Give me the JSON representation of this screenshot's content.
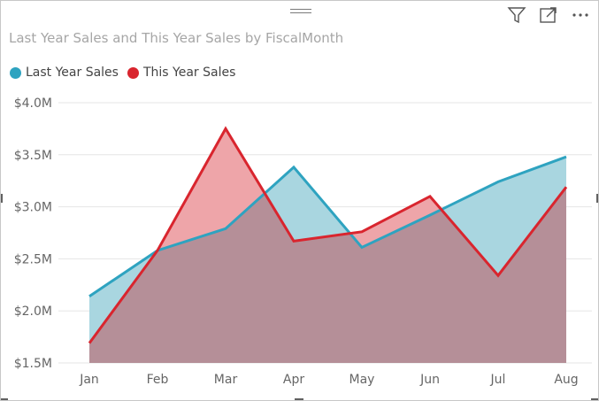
{
  "visual": {
    "title": "Last Year Sales and This Year Sales by FiscalMonth",
    "header_icons": [
      "filter-icon",
      "focus-mode-icon",
      "more-options-icon"
    ]
  },
  "legend": {
    "items": [
      {
        "label": "Last Year Sales",
        "color": "#2ea3c0"
      },
      {
        "label": "This Year Sales",
        "color": "#d9252e"
      }
    ]
  },
  "chart_data": {
    "type": "area",
    "title": "Last Year Sales and This Year Sales by FiscalMonth",
    "xlabel": "",
    "ylabel": "",
    "categories": [
      "Jan",
      "Feb",
      "Mar",
      "Apr",
      "May",
      "Jun",
      "Jul",
      "Aug"
    ],
    "series": [
      {
        "name": "Last Year Sales",
        "color": "#2ea3c0",
        "fill": "#a9d6e0",
        "values": [
          2.14,
          2.58,
          2.79,
          3.38,
          2.61,
          2.92,
          3.24,
          3.48
        ]
      },
      {
        "name": "This Year Sales",
        "color": "#d9252e",
        "fill": "#eea5a9",
        "values": [
          1.69,
          2.58,
          3.75,
          2.67,
          2.76,
          3.1,
          2.34,
          3.19
        ]
      }
    ],
    "ylim": [
      1.5,
      4.0
    ],
    "yticks": [
      {
        "value": 4.0,
        "label": "$4.0M"
      },
      {
        "value": 3.5,
        "label": "$3.5M"
      },
      {
        "value": 3.0,
        "label": "$3.0M"
      },
      {
        "value": 2.5,
        "label": "$2.5M"
      },
      {
        "value": 2.0,
        "label": "$2.0M"
      },
      {
        "value": 1.5,
        "label": "$1.5M"
      }
    ],
    "grid": true,
    "legend_position": "top-left",
    "overlap_color": "#b58f98"
  }
}
